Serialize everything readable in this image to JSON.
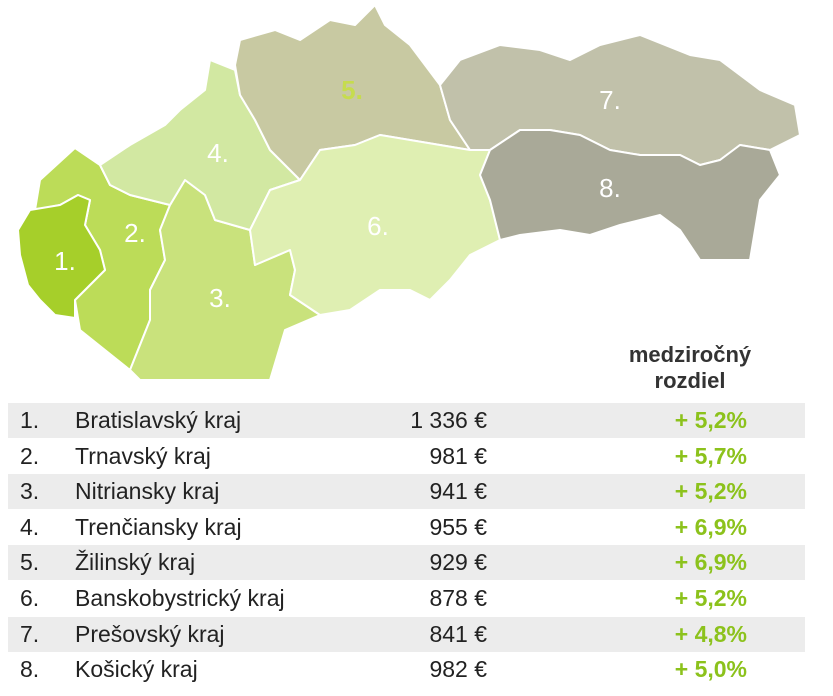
{
  "map": {
    "labels": [
      "1.",
      "2.",
      "3.",
      "4.",
      "5.",
      "6.",
      "7.",
      "8."
    ]
  },
  "table": {
    "header": [
      "medziročný",
      "rozdiel"
    ],
    "rows": [
      [
        "1.",
        "Bratislavský kraj",
        "1 336 €",
        "+ 5,2%"
      ],
      [
        "2.",
        "Trnavský kraj",
        "981 €",
        "+ 5,7%"
      ],
      [
        "3.",
        "Nitriansky kraj",
        "941 €",
        "+ 5,2%"
      ],
      [
        "4.",
        "Trenčiansky kraj",
        "955 €",
        "+ 6,9%"
      ],
      [
        "5.",
        "Žilinský kraj",
        "929 €",
        "+ 6,9%"
      ],
      [
        "6.",
        "Banskobystrický kraj",
        "878 €",
        "+ 5,2%"
      ],
      [
        "7.",
        "Prešovský kraj",
        "841 €",
        "+ 4,8%"
      ],
      [
        "8.",
        "Košický kraj",
        "982 €",
        "+ 5,0%"
      ]
    ]
  }
}
